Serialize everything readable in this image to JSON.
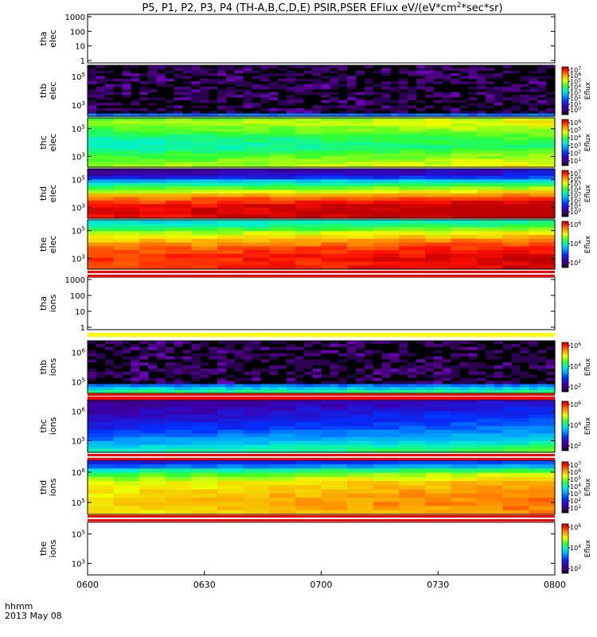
{
  "chart_data": {
    "type": "heatmap",
    "title": "P5, P1, P2, P3, P4 (TH-A,B,C,D,E) PSIR,PSER EFlux eV/(eV*cm2*sec*sr)",
    "title_parts": {
      "prefix": "P5, P1, P2, P3, P4 (TH-A,B,C,D,E) PSIR,PSER EFlux eV/(eV*cm",
      "superscript": "2",
      "suffix": "*sec*sr)"
    },
    "x_label_line1": "hhmm",
    "x_label_line2": "2013 May 08",
    "x_tick_labels": [
      "0600",
      "0630",
      "0700",
      "0730",
      "0800"
    ],
    "x_range": [
      "06:00",
      "08:00"
    ],
    "colorbar_label": "Eflux",
    "panels": [
      {
        "name": "tha elec",
        "probe": "tha",
        "species": "elec",
        "has_data": false,
        "y_ticks": [
          "1000",
          "100",
          "10",
          "1"
        ],
        "colorbar_ticks": []
      },
      {
        "name": "thb elec",
        "probe": "thb",
        "species": "elec",
        "has_data": true,
        "y_ticks": [
          "10^5",
          "10^3"
        ],
        "colorbar_ticks": [
          "10^7",
          "10^6",
          "10^5",
          "10^4",
          "10^3",
          "10^2",
          "10^1",
          "10^0"
        ],
        "bands": [
          "noise",
          "noise",
          "noise",
          "noise",
          "noise",
          "noise",
          "noise",
          "noise",
          "noise",
          "noise",
          "noise",
          "noise",
          "noise",
          "noise",
          "noise",
          "noise",
          "noise",
          "noise",
          "blue"
        ]
      },
      {
        "name": "thc elec",
        "probe": "thc",
        "species": "elec",
        "has_data": true,
        "y_ticks": [
          "10^5",
          "10^3"
        ],
        "colorbar_ticks": [
          "10^6",
          "10^5",
          "10^4",
          "10^3",
          "10^2",
          "10^1"
        ],
        "intensity_level": [
          0.62,
          0.66,
          0.64,
          0.62,
          0.6,
          0.58,
          0.55,
          0.53,
          0.52,
          0.5,
          0.5,
          0.52,
          0.55,
          0.58,
          0.6,
          0.62,
          0.64,
          0.66
        ]
      },
      {
        "name": "thd elec",
        "probe": "thd",
        "species": "elec",
        "has_data": true,
        "y_ticks": [
          "10^5",
          "10^3"
        ],
        "colorbar_ticks": [
          "10^7",
          "10^6",
          "10^5",
          "10^4",
          "10^3",
          "10^2",
          "10^1",
          "10^0"
        ],
        "intensity_level": [
          0.12,
          0.14,
          0.22,
          0.42,
          0.52,
          0.6,
          0.68,
          0.78,
          0.85,
          0.9,
          0.94,
          0.96,
          0.96,
          0.94
        ]
      },
      {
        "name": "the elec",
        "probe": "the",
        "species": "elec",
        "has_data": true,
        "y_ticks": [
          "10^5",
          "10^3"
        ],
        "colorbar_ticks": [
          "10^6",
          "10^4",
          "10^2"
        ],
        "intensity_level": [
          0.46,
          0.5,
          0.58,
          0.66,
          0.72,
          0.78,
          0.82,
          0.86,
          0.88,
          0.9,
          0.91,
          0.9,
          0.9
        ]
      },
      {
        "name": "tha ions",
        "probe": "tha",
        "species": "ions",
        "has_data": false,
        "y_ticks": [
          "1000",
          "100",
          "10",
          "1"
        ],
        "colorbar_ticks": []
      },
      {
        "name": "thb ions",
        "probe": "thb",
        "species": "ions",
        "has_data": true,
        "y_ticks": [
          "10^6",
          "10^5"
        ],
        "colorbar_ticks": [
          "10^6",
          "10^4",
          "10^2"
        ],
        "bands": [
          "noise",
          "noise",
          "noise",
          "noise",
          "noise",
          "noise",
          "noise",
          "noise",
          "noise",
          "noise",
          "noise",
          "noise",
          "noise",
          "noise",
          "blue",
          "cyan",
          "green"
        ]
      },
      {
        "name": "thc ions",
        "probe": "thc",
        "species": "ions",
        "has_data": true,
        "y_ticks": [
          "10^6",
          "10^5"
        ],
        "colorbar_ticks": [
          "10^6",
          "10^4",
          "10^2"
        ],
        "intensity_level": [
          0.1,
          0.12,
          0.14,
          0.16,
          0.18,
          0.2,
          0.22,
          0.25,
          0.28,
          0.32,
          0.36,
          0.4,
          0.45,
          0.5
        ]
      },
      {
        "name": "thd ions",
        "probe": "thd",
        "species": "ions",
        "has_data": true,
        "y_ticks": [
          "10^6",
          "10^5"
        ],
        "colorbar_ticks": [
          "10^7",
          "10^6",
          "10^5",
          "10^4",
          "10^3",
          "10^2",
          "10^1"
        ],
        "intensity_level": [
          0.22,
          0.32,
          0.5,
          0.6,
          0.66,
          0.7,
          0.72,
          0.74,
          0.75,
          0.76,
          0.76,
          0.75,
          0.74
        ]
      },
      {
        "name": "the ions",
        "probe": "the",
        "species": "ions",
        "has_data": false,
        "y_ticks": [
          "10^5",
          "10^3"
        ],
        "colorbar_ticks": [
          "10^6",
          "10^4",
          "10^2"
        ]
      }
    ]
  }
}
